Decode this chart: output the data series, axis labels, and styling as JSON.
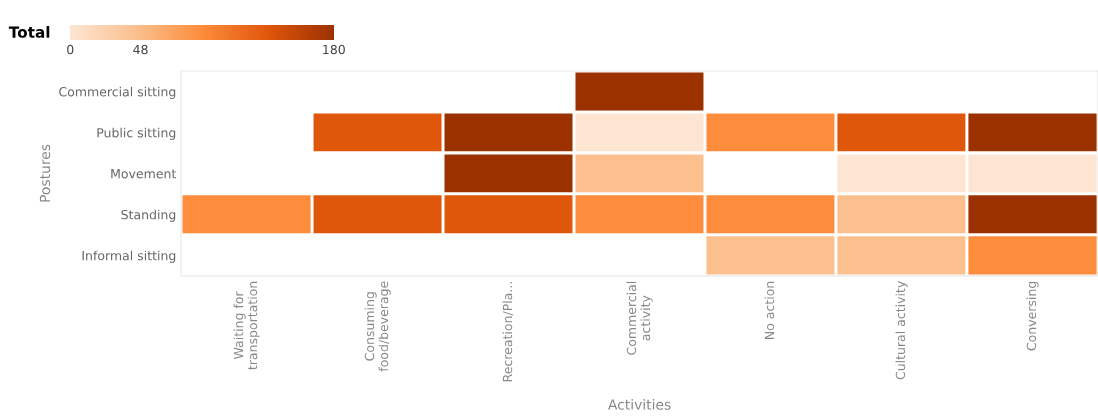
{
  "chart_data": {
    "type": "heatmap",
    "xlabel": "Activities",
    "ylabel": "Postures",
    "clabel": "Total",
    "categories": [
      "Waiting for\ntransportation",
      "Consuming\nfood/beverage",
      "Recreation/Pla...",
      "Commercial\nactivity",
      "No action",
      "Cultural activity",
      "Conversing"
    ],
    "y_categories": [
      "Commercial sitting",
      "Public sitting",
      "Movement",
      "Standing",
      "Informal sitting"
    ],
    "cells": [
      [
        null,
        null,
        null,
        180,
        null,
        null,
        null
      ],
      [
        null,
        135,
        180,
        0,
        90,
        135,
        180
      ],
      [
        null,
        null,
        180,
        45,
        null,
        0,
        0
      ],
      [
        90,
        135,
        135,
        90,
        90,
        45,
        180
      ],
      [
        null,
        null,
        null,
        null,
        45,
        45,
        90
      ]
    ],
    "colors": [
      "#fde5d2",
      "#fbc08e",
      "#fd8c3c",
      "#e0570b",
      "#9c3100"
    ],
    "clim": [
      0,
      180
    ],
    "cticks": [
      0,
      48,
      180
    ]
  }
}
